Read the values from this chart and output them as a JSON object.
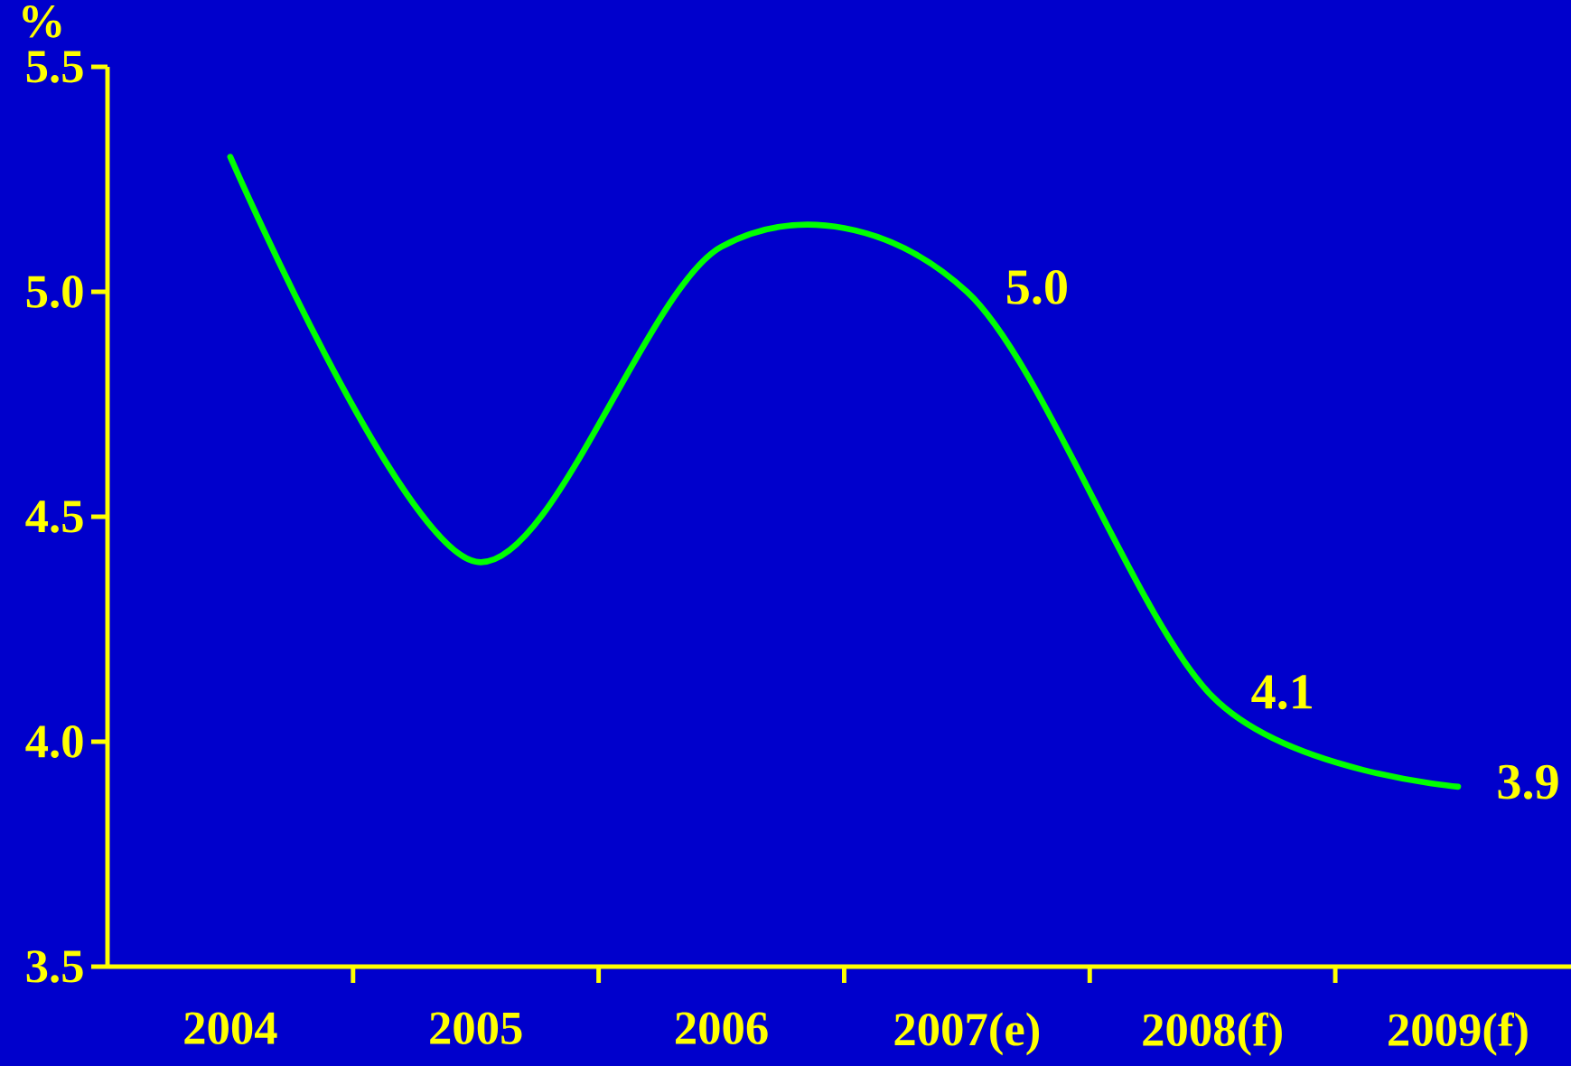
{
  "chart_data": {
    "type": "line",
    "ylabel": "%",
    "categories": [
      "2004",
      "2005",
      "2006",
      "2007(e)",
      "2008(f)",
      "2009(f)"
    ],
    "series": [
      {
        "color": "#00ff00",
        "values": [
          5.3,
          4.4,
          5.1,
          5.0,
          4.1,
          3.9
        ],
        "value_labels": [
          null,
          null,
          null,
          "5.0",
          "4.1",
          "3.9"
        ]
      }
    ],
    "ylim": [
      3.5,
      5.5
    ],
    "yticks": [
      {
        "value": 3.5,
        "label": "3.5"
      },
      {
        "value": 4.0,
        "label": "4.0"
      },
      {
        "value": 4.5,
        "label": "4.5"
      },
      {
        "value": 5.0,
        "label": "5.0"
      },
      {
        "value": 5.5,
        "label": "5.5"
      }
    ],
    "grid": false,
    "legend": false,
    "marker": "none",
    "line_style": "solid"
  }
}
